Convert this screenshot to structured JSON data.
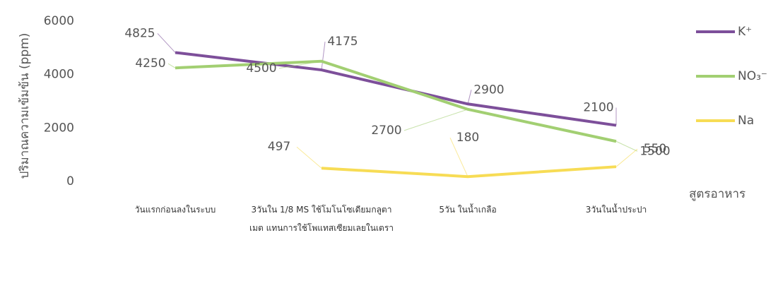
{
  "chart_data": {
    "type": "line",
    "y_label": "ปริมาณความเข้มข้น (ppm)",
    "x_label": "สูตรอาหาร",
    "categories": [
      "วันแรกก่อนลงในระบบ",
      "3วันใน 1/8 MS ใช้โมโนโซเดียมกลูตาเมต แทนการใช้โพแทสเซียมเลยในเตรา",
      "5วัน ในน้ำเกลือ",
      "3วันในน้ำประปา"
    ],
    "series": [
      {
        "name": "K⁺",
        "color": "#7d4f9a",
        "values": [
          4825,
          4175,
          2900,
          2100
        ]
      },
      {
        "name": "NO₃⁻",
        "color": "#a2cf72",
        "values": [
          4250,
          4500,
          2700,
          1500
        ]
      },
      {
        "name": "Na",
        "color": "#f7dc55",
        "values": [
          null,
          497,
          180,
          550
        ]
      }
    ],
    "ylim": [
      0,
      6000
    ],
    "yticks": [
      0,
      2000,
      4000,
      6000
    ],
    "grid": false,
    "legend": "right"
  }
}
